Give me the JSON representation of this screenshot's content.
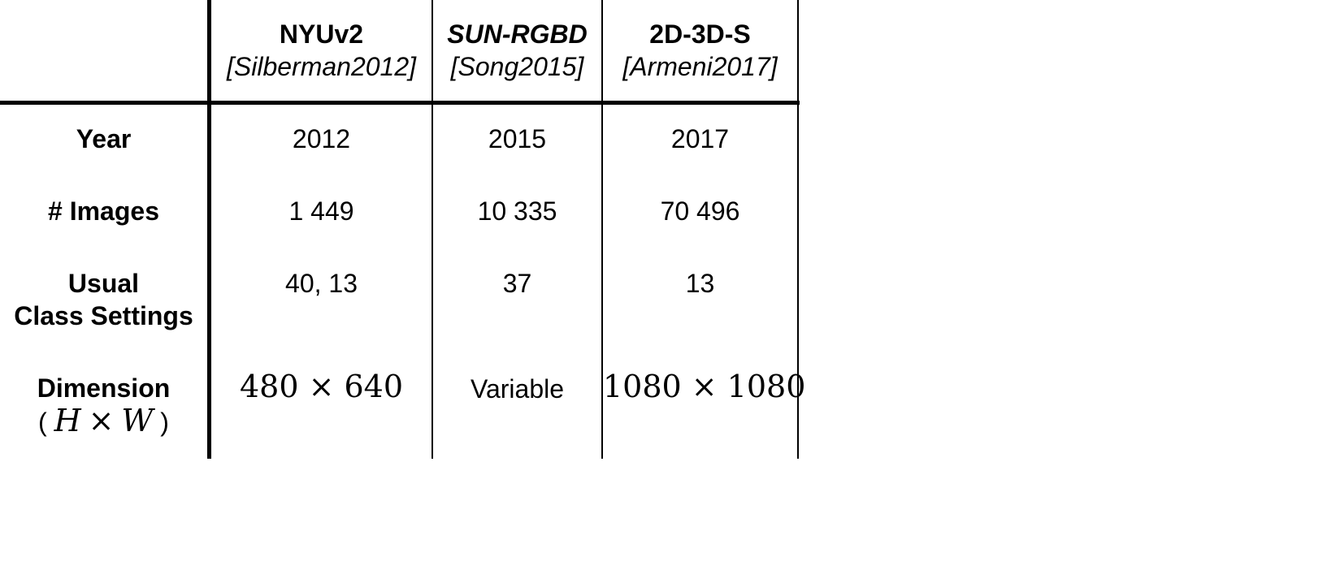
{
  "columns": [
    {
      "name": "NYUv2",
      "citation": "[Silberman2012]"
    },
    {
      "name": "SUN-RGBD",
      "citation": "[Song2015]"
    },
    {
      "name": "2D-3D-S",
      "citation": "[Armeni2017]"
    }
  ],
  "rows": {
    "year": {
      "label": "Year",
      "values": [
        "2012",
        "2015",
        "2017"
      ]
    },
    "images": {
      "label": "# Images",
      "values": [
        "1 449",
        "10 335",
        "70 496"
      ]
    },
    "classes": {
      "label_line1": "Usual",
      "label_line2": "Class Settings",
      "values": [
        "40, 13",
        "37",
        "13"
      ]
    },
    "dimension": {
      "label_line1": "Dimension",
      "label_open": "(",
      "label_h": "H",
      "label_times": "×",
      "label_w": "W",
      "label_close": ")",
      "values": [
        "480 × 640",
        "Variable",
        "1080 × 1080"
      ]
    }
  }
}
